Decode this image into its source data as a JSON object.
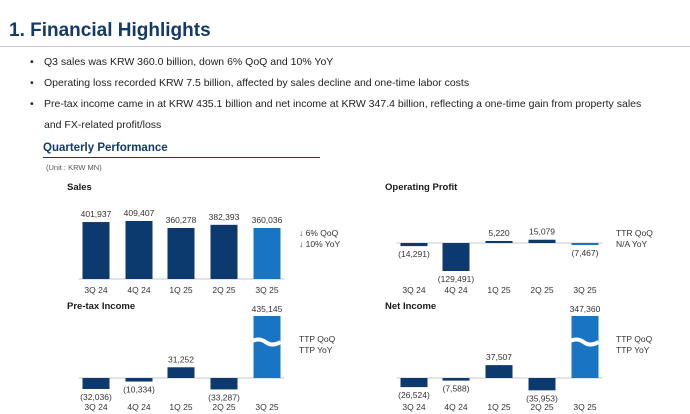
{
  "title": "1. Financial Highlights",
  "bullets": [
    "Q3 sales was KRW 360.0 billion, down 6% QoQ and 10% YoY",
    "Operating loss recorded KRW 7.5 billion, affected by sales decline and one-time labor costs",
    "Pre-tax income came in at KRW 435.1 billion and net income at KRW 347.4 billion, reflecting a one-time gain from property sales",
    "and FX-related profit/loss"
  ],
  "section_title": "Quarterly Performance",
  "unit_label": "(Unit : KRW MN)",
  "colors": {
    "dark_bar": "#0d3a6e",
    "current_bar": "#1a74c4",
    "title": "#123a6b",
    "axis": "#c5c9cf"
  },
  "chart_data": [
    {
      "type": "bar",
      "title": "Sales",
      "categories": [
        "3Q 24",
        "4Q 24",
        "1Q 25",
        "2Q 25",
        "3Q 25"
      ],
      "values": [
        401937,
        409407,
        360278,
        382393,
        360036
      ],
      "value_labels": [
        "401,937",
        "409,407",
        "360,278",
        "382,393",
        "360,036"
      ],
      "annotations": [
        "↓ 6% QoQ",
        "↓ 10% YoY"
      ],
      "broken_bar_index": null
    },
    {
      "type": "bar",
      "title": "Operating Profit",
      "categories": [
        "3Q 24",
        "4Q 24",
        "1Q 25",
        "2Q 25",
        "3Q 25"
      ],
      "values": [
        -14291,
        -129491,
        5220,
        15079,
        -7467
      ],
      "value_labels": [
        "(14,291)",
        "(129,491)",
        "5,220",
        "15,079",
        "(7,467)"
      ],
      "annotations": [
        "TTR QoQ",
        "N/A YoY"
      ],
      "broken_bar_index": null
    },
    {
      "type": "bar",
      "title": "Pre-tax Income",
      "categories": [
        "3Q 24",
        "4Q 24",
        "1Q 25",
        "2Q 25",
        "3Q 25"
      ],
      "values": [
        -32036,
        -10334,
        31252,
        -33287,
        435145
      ],
      "value_labels": [
        "(32,036)",
        "(10,334)",
        "31,252",
        "(33,287)",
        "435,145"
      ],
      "annotations": [
        "TTP QoQ",
        "TTP YoY"
      ],
      "broken_bar_index": 4
    },
    {
      "type": "bar",
      "title": "Net Income",
      "categories": [
        "3Q 24",
        "4Q 24",
        "1Q 25",
        "2Q 25",
        "3Q 25"
      ],
      "values": [
        -26524,
        -7588,
        37507,
        -35953,
        347360
      ],
      "value_labels": [
        "(26,524)",
        "(7,588)",
        "37,507",
        "(35,953)",
        "347,360"
      ],
      "annotations": [
        "TTP QoQ",
        "TTP YoY"
      ],
      "broken_bar_index": 4
    }
  ]
}
